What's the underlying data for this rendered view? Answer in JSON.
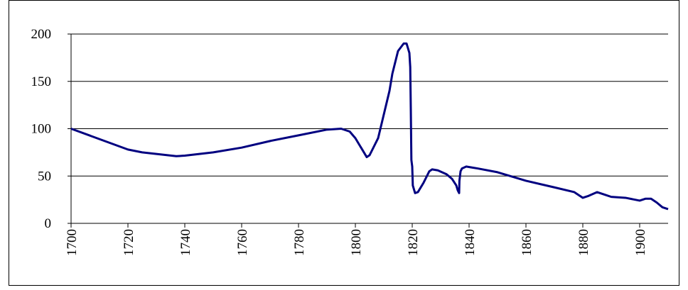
{
  "chart_data": {
    "type": "line",
    "x": [
      1700,
      1720,
      1725,
      1737,
      1740,
      1750,
      1760,
      1770,
      1780,
      1790,
      1795,
      1798,
      1800,
      1802,
      1804,
      1805,
      1806,
      1808,
      1810,
      1812,
      1813,
      1815,
      1817,
      1818,
      1819,
      1819.3,
      1819.5,
      1819.7,
      1820,
      1820.2,
      1821,
      1822,
      1824,
      1826,
      1827,
      1829,
      1832,
      1834,
      1835.5,
      1836,
      1836.5,
      1836.6,
      1837,
      1837.5,
      1839,
      1841,
      1843,
      1850,
      1860,
      1870,
      1877,
      1880,
      1882,
      1885,
      1888,
      1890,
      1895,
      1900,
      1902,
      1904,
      1906,
      1908,
      1910
    ],
    "series": [
      {
        "color": "#000080",
        "values": [
          100,
          78,
          75,
          71,
          71.5,
          75,
          80,
          87,
          93,
          99,
          100,
          97,
          90,
          80,
          70,
          72,
          78,
          90,
          115,
          140,
          158,
          182,
          190,
          190,
          180,
          165,
          120,
          67,
          60,
          40,
          32,
          33,
          43,
          55,
          57,
          56,
          52,
          47,
          40,
          35,
          32,
          45,
          55,
          58,
          60,
          59,
          58,
          54,
          45,
          38,
          33,
          27,
          29,
          33,
          30,
          28,
          27,
          24,
          26,
          26,
          22,
          17,
          15
        ]
      }
    ],
    "xlim": [
      1700,
      1910
    ],
    "xticks": [
      1700,
      1720,
      1740,
      1760,
      1780,
      1800,
      1820,
      1840,
      1860,
      1880,
      1900
    ],
    "ylim": [
      0,
      200
    ],
    "yticks": [
      0,
      50,
      100,
      150,
      200
    ],
    "grid": true
  }
}
